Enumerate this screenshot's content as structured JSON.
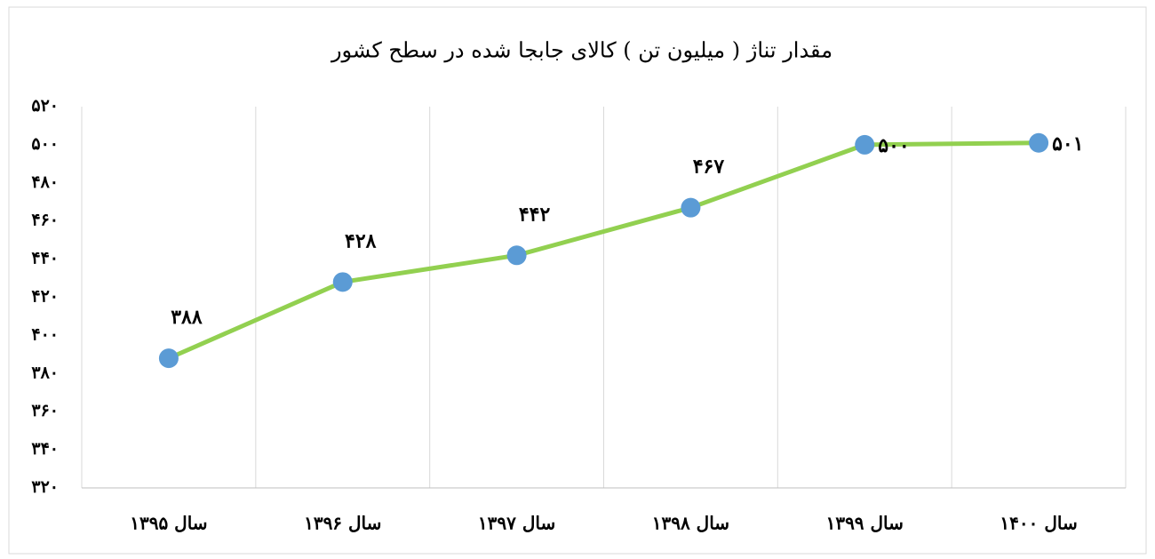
{
  "chart_data": {
    "type": "line",
    "title": "مقدار تناژ ( میلیون تن ) کالای جابجا شده در سطح کشور",
    "categories": [
      "سال ۱۳۹۵",
      "سال ۱۳۹۶",
      "سال ۱۳۹۷",
      "سال ۱۳۹۸",
      "سال ۱۳۹۹",
      "سال ۱۴۰۰"
    ],
    "values": [
      388,
      428,
      442,
      467,
      500,
      501
    ],
    "value_labels": [
      "۳۸۸",
      "۴۲۸",
      "۴۴۲",
      "۴۶۷",
      "۵۰۰",
      "۵۰۱"
    ],
    "color": "#92d050",
    "marker_color": "#5b9bd5",
    "ylim": [
      320,
      520
    ],
    "yticks": [
      {
        "value": 320,
        "label": "۳۲۰"
      },
      {
        "value": 340,
        "label": "۳۴۰"
      },
      {
        "value": 360,
        "label": "۳۶۰"
      },
      {
        "value": 380,
        "label": "۳۸۰"
      },
      {
        "value": 400,
        "label": "۴۰۰"
      },
      {
        "value": 420,
        "label": "۴۲۰"
      },
      {
        "value": 440,
        "label": "۴۴۰"
      },
      {
        "value": 460,
        "label": "۴۶۰"
      },
      {
        "value": 480,
        "label": "۴۸۰"
      },
      {
        "value": 500,
        "label": "۵۰۰"
      },
      {
        "value": 520,
        "label": "۵۲۰"
      }
    ]
  }
}
